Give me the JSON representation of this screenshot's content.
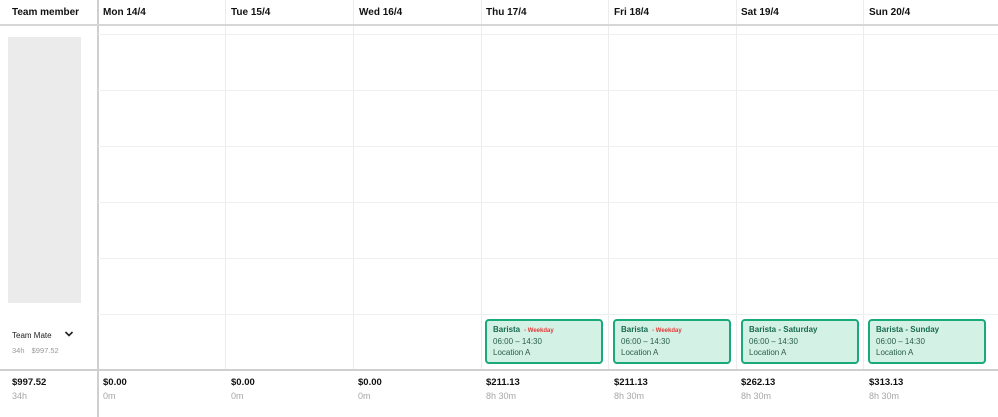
{
  "header": {
    "member_col": "Team member",
    "days": [
      "Mon 14/4",
      "Tue 15/4",
      "Wed 16/4",
      "Thu 17/4",
      "Fri 18/4",
      "Sat 19/4",
      "Sun 20/4"
    ]
  },
  "member": {
    "name": "Team Mate",
    "hours": "34h",
    "cost": "$997.52"
  },
  "shifts": [
    {
      "day": "Thu 17/4",
      "title": "Barista",
      "tag": "- Weekday",
      "time": "06:00 – 14:30",
      "location": "Location A"
    },
    {
      "day": "Fri 18/4",
      "title": "Barista",
      "tag": "- Weekday",
      "time": "06:00 – 14:30",
      "location": "Location A"
    },
    {
      "day": "Sat 19/4",
      "title": "Barista - Saturday",
      "tag": "",
      "time": "06:00 – 14:30",
      "location": "Location A"
    },
    {
      "day": "Sun 20/4",
      "title": "Barista - Sunday",
      "tag": "",
      "time": "06:00 – 14:30",
      "location": "Location A"
    }
  ],
  "totals": {
    "overall": {
      "amount": "$997.52",
      "hours": "34h"
    },
    "days": [
      {
        "amount": "$0.00",
        "hours": "0m"
      },
      {
        "amount": "$0.00",
        "hours": "0m"
      },
      {
        "amount": "$0.00",
        "hours": "0m"
      },
      {
        "amount": "$211.13",
        "hours": "8h 30m"
      },
      {
        "amount": "$211.13",
        "hours": "8h 30m"
      },
      {
        "amount": "$262.13",
        "hours": "8h 30m"
      },
      {
        "amount": "$313.13",
        "hours": "8h 30m"
      }
    ]
  },
  "colors": {
    "shift_bg": "#d4f1e6",
    "shift_border": "#1aa97a",
    "tag": "#e53935"
  },
  "icons": {
    "member_toggle": "chevron-down-icon"
  }
}
